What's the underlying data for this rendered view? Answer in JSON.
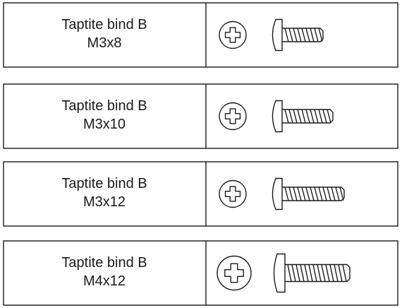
{
  "items": [
    {
      "name": "Taptite bind B",
      "size": "M3x8"
    },
    {
      "name": "Taptite bind B",
      "size": "M3x10"
    },
    {
      "name": "Taptite bind B",
      "size": "M3x12"
    },
    {
      "name": "Taptite bind B",
      "size": "M4x12"
    }
  ]
}
